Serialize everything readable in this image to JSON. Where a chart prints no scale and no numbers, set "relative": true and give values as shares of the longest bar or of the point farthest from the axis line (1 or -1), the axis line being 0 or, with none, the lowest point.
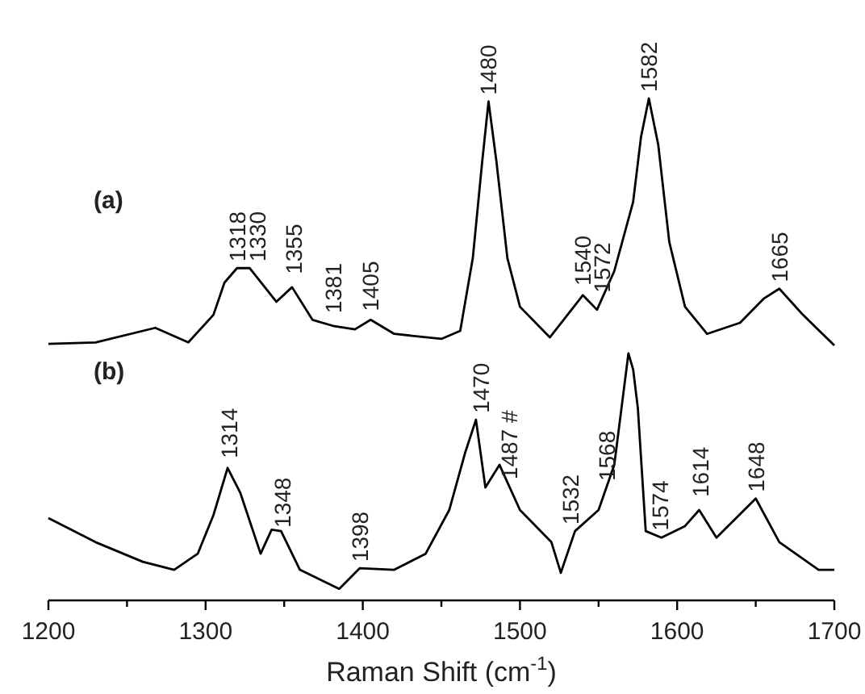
{
  "chart_data": {
    "type": "line",
    "relative": true,
    "xlabel": "Raman Shift (cm$^{-1}$)",
    "xlim": [
      1200,
      1700
    ],
    "xticks": [
      1200,
      {
        "value": 1250,
        "label": null
      },
      1300,
      {
        "value": 1350,
        "label": null
      },
      1400,
      {
        "value": 1450,
        "label": null
      },
      1500,
      {
        "value": 1550,
        "label": null
      },
      1600,
      {
        "value": 1650,
        "label": null
      },
      1700
    ],
    "grid": false,
    "marker": "none",
    "line_style": "solid",
    "tick_labels": "x",
    "series": [
      {
        "color": "#000000",
        "x": [
          1200,
          1230,
          1268,
          1289,
          1305,
          1312,
          1320,
          1328,
          1345,
          1355,
          1368,
          1381,
          1395,
          1405,
          1420,
          1450,
          1462,
          1470,
          1476,
          1480,
          1485,
          1492,
          1500,
          1519,
          1540,
          1549,
          1560,
          1572,
          1577,
          1582,
          1588,
          1595,
          1605,
          1619,
          1640,
          1655,
          1665,
          1680,
          1700
        ],
        "values": [
          0.511,
          0.514,
          0.543,
          0.514,
          0.569,
          0.633,
          0.662,
          0.662,
          0.595,
          0.624,
          0.559,
          0.547,
          0.54,
          0.559,
          0.531,
          0.521,
          0.537,
          0.682,
          0.875,
          0.994,
          0.875,
          0.682,
          0.585,
          0.524,
          0.608,
          0.579,
          0.656,
          0.794,
          0.923,
          1,
          0.907,
          0.714,
          0.585,
          0.531,
          0.553,
          0.601,
          0.621,
          0.569,
          0.508
        ]
      },
      {
        "color": "#000000",
        "x": [
          1200,
          1230,
          1260,
          1280,
          1295,
          1305,
          1314,
          1322,
          1335,
          1342,
          1348,
          1360,
          1385,
          1398,
          1420,
          1440,
          1455,
          1465,
          1472,
          1478,
          1487,
          1500,
          1520,
          1526,
          1535,
          1550,
          1560,
          1569,
          1572,
          1575,
          1580,
          1590,
          1605,
          1614,
          1625,
          1650,
          1665,
          1690,
          1700
        ],
        "values": [
          0.164,
          0.116,
          0.077,
          0.061,
          0.093,
          0.17,
          0.264,
          0.215,
          0.093,
          0.141,
          0.138,
          0.061,
          0.023,
          0.064,
          0.061,
          0.093,
          0.18,
          0.293,
          0.36,
          0.225,
          0.27,
          0.18,
          0.116,
          0.055,
          0.138,
          0.18,
          0.27,
          0.492,
          0.46,
          0.383,
          0.138,
          0.125,
          0.148,
          0.18,
          0.125,
          0.203,
          0.116,
          0.061,
          0.061
        ]
      }
    ],
    "annotations": [
      "(a)",
      "(b)",
      {
        "text": "1318",
        "x": 1320,
        "y": 0.662
      },
      {
        "text": "1330",
        "x": 1333,
        "y": 0.662
      },
      {
        "text": "1355",
        "x": 1356,
        "y": 0.637
      },
      {
        "text": "1381",
        "x": 1381,
        "y": 0.559
      },
      {
        "text": "1405",
        "x": 1405,
        "y": 0.563
      },
      {
        "text": "1480",
        "x": 1480,
        "y": 0.994
      },
      {
        "text": "1540",
        "x": 1540,
        "y": 0.614
      },
      {
        "text": "1572",
        "x": 1552,
        "y": 0.6
      },
      {
        "text": "1582",
        "x": 1582,
        "y": 1
      },
      {
        "text": "1665",
        "x": 1665,
        "y": 0.621
      },
      {
        "text": "1314",
        "x": 1315,
        "y": 0.27
      },
      {
        "text": "1348",
        "x": 1349,
        "y": 0.132
      },
      {
        "text": "1398",
        "x": 1398,
        "y": 0.064
      },
      {
        "text": "1470",
        "x": 1475,
        "y": 0.36
      },
      {
        "text": "1487 #",
        "x": 1493,
        "y": 0.228
      },
      {
        "text": "1532",
        "x": 1532,
        "y": 0.138
      },
      {
        "text": "1568",
        "x": 1555,
        "y": 0.225
      },
      {
        "text": "1574",
        "x": 1589,
        "y": 0.126
      },
      {
        "text": "1614",
        "x": 1615,
        "y": 0.193
      },
      {
        "text": "1648",
        "x": 1650,
        "y": 0.203
      }
    ]
  }
}
